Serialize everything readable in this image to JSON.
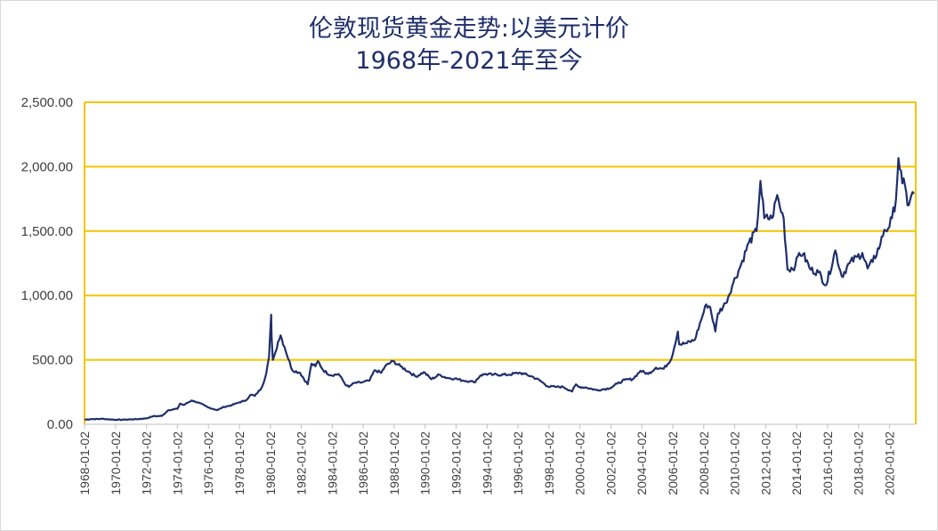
{
  "chart_data": {
    "type": "line",
    "title": "伦敦现货黄金走势:以美元计价",
    "subtitle": "1968年-2021年至今",
    "xlabel": "",
    "ylabel": "",
    "ylim": [
      0,
      2500
    ],
    "yticks": [
      "0.00",
      "500.00",
      "1,000.00",
      "1,500.00",
      "2,000.00",
      "2,500.00"
    ],
    "xticks": [
      "1968-01-02",
      "1970-01-02",
      "1972-01-02",
      "1974-01-02",
      "1976-01-02",
      "1978-01-02",
      "1980-01-02",
      "1982-01-02",
      "1984-01-02",
      "1986-01-02",
      "1988-01-02",
      "1990-01-02",
      "1992-01-02",
      "1994-01-02",
      "1996-01-02",
      "1998-01-02",
      "2000-01-02",
      "2002-01-02",
      "2004-01-02",
      "2006-01-02",
      "2008-01-02",
      "2010-01-02",
      "2012-01-02",
      "2014-01-02",
      "2016-01-02",
      "2018-01-02",
      "2020-01-02"
    ],
    "grid": true,
    "line_color": "#1f2f6b",
    "grid_color": "#f5c400",
    "series": [
      {
        "name": "",
        "x": [
          "1968-01",
          "1968-06",
          "1969-03",
          "1970-01",
          "1970-06",
          "1971-01",
          "1971-06",
          "1972-01",
          "1972-06",
          "1973-01",
          "1973-06",
          "1974-01",
          "1974-03",
          "1974-06",
          "1974-12",
          "1975-06",
          "1976-01",
          "1976-08",
          "1977-01",
          "1977-06",
          "1978-01",
          "1978-06",
          "1978-10",
          "1979-01",
          "1979-06",
          "1979-09",
          "1979-12",
          "1980-01-21",
          "1980-02",
          "1980-03",
          "1980-05",
          "1980-07",
          "1980-09",
          "1980-12",
          "1981-06",
          "1981-12",
          "1982-06",
          "1982-09",
          "1982-12",
          "1983-02",
          "1983-06",
          "1983-12",
          "1984-06",
          "1984-12",
          "1985-02",
          "1985-06",
          "1985-12",
          "1986-06",
          "1986-10",
          "1987-03",
          "1987-06",
          "1987-12",
          "1988-06",
          "1988-12",
          "1989-06",
          "1989-12",
          "1990-06",
          "1990-12",
          "1991-06",
          "1991-12",
          "1992-06",
          "1992-12",
          "1993-03",
          "1993-08",
          "1993-12",
          "1994-06",
          "1995-06",
          "1996-02",
          "1996-06",
          "1996-12",
          "1997-06",
          "1997-12",
          "1998-06",
          "1998-12",
          "1999-06",
          "1999-07",
          "1999-10",
          "1999-12",
          "2000-06",
          "2001-02",
          "2001-06",
          "2001-12",
          "2002-06",
          "2002-12",
          "2003-06",
          "2003-12",
          "2004-06",
          "2004-12",
          "2005-06",
          "2005-12",
          "2006-05",
          "2006-06",
          "2006-12",
          "2007-06",
          "2007-12",
          "2008-03",
          "2008-06",
          "2008-10",
          "2008-12",
          "2009-06",
          "2009-12",
          "2010-06",
          "2010-12",
          "2011-06",
          "2011-09",
          "2011-12",
          "2012-06",
          "2012-10",
          "2012-12",
          "2013-03",
          "2013-06",
          "2013-12",
          "2014-03",
          "2014-06",
          "2014-12",
          "2015-06",
          "2015-12",
          "2016-07",
          "2016-12",
          "2017-06",
          "2017-12",
          "2018-04",
          "2018-08",
          "2018-12",
          "2019-06",
          "2019-09",
          "2019-12",
          "2020-03",
          "2020-06",
          "2020-08",
          "2020-11",
          "2021-01",
          "2021-03",
          "2021-06",
          "2021-08"
        ],
        "values": [
          36,
          40,
          42,
          35,
          35,
          38,
          40,
          46,
          62,
          65,
          110,
          120,
          160,
          150,
          185,
          165,
          130,
          110,
          135,
          145,
          170,
          185,
          230,
          220,
          280,
          360,
          520,
          850,
          680,
          500,
          560,
          640,
          690,
          600,
          420,
          400,
          310,
          470,
          450,
          490,
          420,
          380,
          390,
          300,
          290,
          320,
          325,
          340,
          420,
          400,
          450,
          490,
          450,
          410,
          370,
          405,
          350,
          385,
          360,
          355,
          340,
          335,
          325,
          380,
          390,
          385,
          385,
          400,
          390,
          370,
          340,
          295,
          290,
          290,
          260,
          255,
          310,
          290,
          285,
          265,
          270,
          280,
          315,
          345,
          350,
          415,
          390,
          440,
          430,
          510,
          720,
          620,
          630,
          655,
          840,
          930,
          910,
          720,
          860,
          940,
          1100,
          1240,
          1410,
          1500,
          1890,
          1600,
          1600,
          1780,
          1690,
          1600,
          1200,
          1230,
          1330,
          1320,
          1200,
          1180,
          1080,
          1350,
          1150,
          1250,
          1300,
          1330,
          1210,
          1260,
          1400,
          1510,
          1520,
          1600,
          1740,
          2067,
          1870,
          1860,
          1700,
          1780,
          1790
        ]
      }
    ]
  }
}
